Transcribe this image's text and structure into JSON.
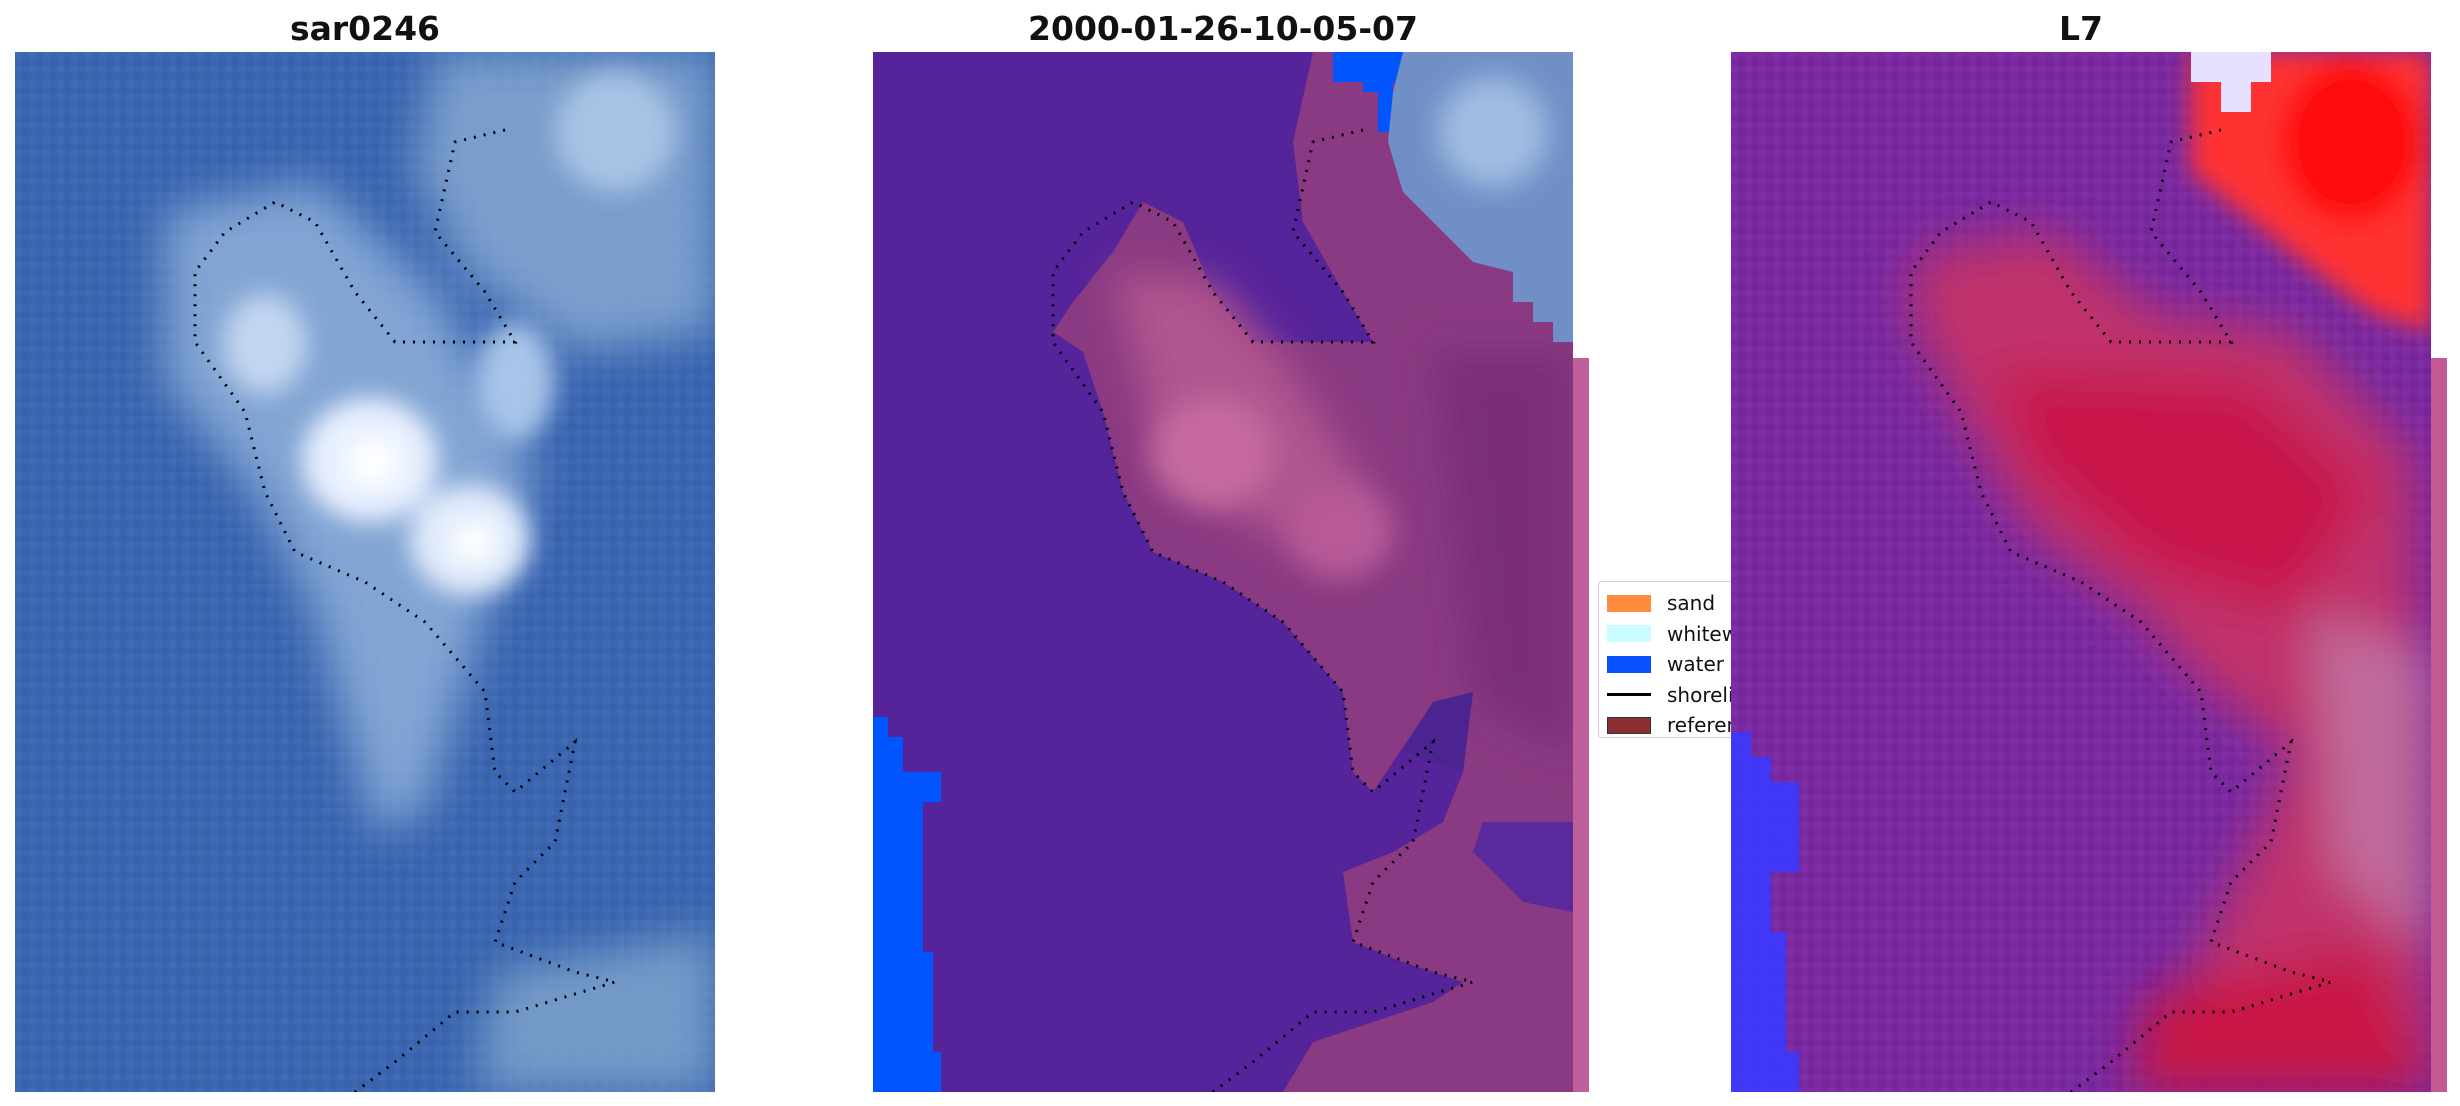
{
  "panels": [
    {
      "title": "sar0246"
    },
    {
      "title": "2000-01-26-10-05-07"
    },
    {
      "title": "L7"
    }
  ],
  "legend": {
    "items": [
      {
        "label": "sand",
        "color": "#ff8c3c",
        "kind": "patch"
      },
      {
        "label": "whitewater",
        "color": "#c8fcff",
        "kind": "patch"
      },
      {
        "label": "water",
        "color": "#0a50ff",
        "kind": "patch"
      },
      {
        "label": "shoreline",
        "color": "#000000",
        "kind": "line"
      },
      {
        "label": "reference shoreline",
        "color": "#8b2f32",
        "kind": "patch"
      }
    ]
  },
  "colors": {
    "rgb_water": "#3a66b0",
    "class_background": "#55239a",
    "class_land": "#8a3a82",
    "class_water": "#0055ff",
    "mndwi_background": "#7a2aa0",
    "mndwi_high": "#ff2020",
    "mndwi_water": "#3a3aff"
  }
}
